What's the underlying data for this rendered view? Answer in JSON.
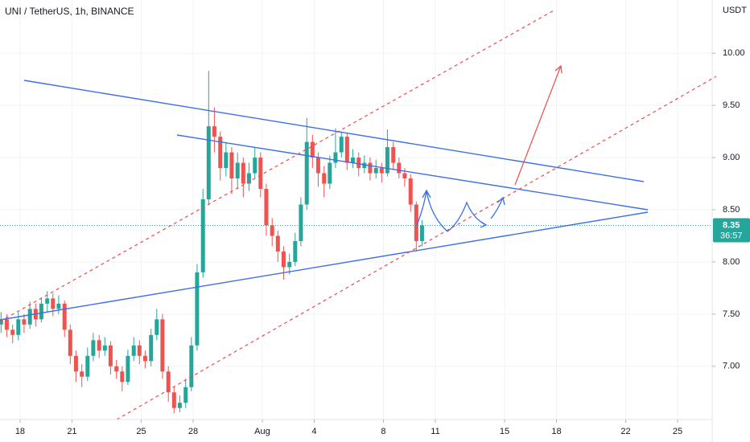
{
  "chart_data": {
    "type": "candlestick",
    "title": "UNI / TetherUS, 1h, BINANCE",
    "y_axis_label": "USDT",
    "current_price": 8.35,
    "current_price_label": "8.35",
    "countdown": "36:57",
    "up_color": "#26a69a",
    "down_color": "#ef5350",
    "grid": true,
    "xlim": [
      16.84,
      58.0
    ],
    "ylim": [
      6.49,
      10.51
    ],
    "xticks": [
      {
        "value": 18,
        "label": "18"
      },
      {
        "value": 21,
        "label": "21"
      },
      {
        "value": 25,
        "label": "25"
      },
      {
        "value": 28,
        "label": "28"
      },
      {
        "value": 32,
        "label": "Aug"
      },
      {
        "value": 35,
        "label": "4"
      },
      {
        "value": 39,
        "label": "8"
      },
      {
        "value": 42,
        "label": "11"
      },
      {
        "value": 46,
        "label": "15"
      },
      {
        "value": 49,
        "label": "18"
      },
      {
        "value": 53,
        "label": "22"
      },
      {
        "value": 56,
        "label": "25"
      }
    ],
    "yticks": [
      {
        "value": 7,
        "label": "7.00"
      },
      {
        "value": 7.5,
        "label": "7.50"
      },
      {
        "value": 8,
        "label": "8.00"
      },
      {
        "value": 8.5,
        "label": "8.50"
      },
      {
        "value": 9,
        "label": "9.00"
      },
      {
        "value": 9.5,
        "label": "9.50"
      },
      {
        "value": 10,
        "label": "10.00"
      }
    ],
    "x": [
      16.9,
      17.23,
      17.57,
      17.9,
      18.23,
      18.57,
      18.9,
      19.23,
      19.57,
      19.9,
      20.23,
      20.57,
      20.9,
      21.23,
      21.57,
      21.9,
      22.23,
      22.57,
      22.9,
      23.23,
      23.57,
      23.9,
      24.23,
      24.57,
      24.9,
      25.23,
      25.57,
      25.9,
      26.23,
      26.57,
      26.9,
      27.23,
      27.57,
      27.9,
      28.23,
      28.57,
      28.9,
      29.23,
      29.57,
      29.9,
      30.23,
      30.57,
      30.9,
      31.23,
      31.57,
      31.9,
      32.23,
      32.57,
      32.9,
      33.23,
      33.57,
      33.9,
      34.23,
      34.57,
      34.9,
      35.23,
      35.57,
      35.9,
      36.23,
      36.57,
      36.9,
      37.23,
      37.57,
      37.9,
      38.23,
      38.57,
      38.9,
      39.23,
      39.57,
      39.9,
      40.23,
      40.57,
      40.9,
      41.23
    ],
    "open": [
      7.4,
      7.45,
      7.35,
      7.3,
      7.45,
      7.4,
      7.55,
      7.45,
      7.6,
      7.65,
      7.55,
      7.6,
      7.35,
      7.1,
      6.95,
      6.9,
      7.1,
      7.25,
      7.15,
      7.2,
      7.0,
      6.95,
      6.85,
      7.1,
      7.2,
      7.1,
      7.05,
      7.3,
      7.45,
      6.95,
      6.75,
      6.6,
      6.65,
      6.8,
      7.2,
      7.9,
      8.6,
      9.3,
      9.2,
      8.9,
      9.05,
      8.8,
      8.95,
      8.75,
      8.85,
      9.0,
      8.7,
      8.35,
      8.25,
      8.1,
      7.95,
      8.0,
      8.2,
      8.55,
      9.15,
      9.0,
      8.85,
      8.75,
      8.95,
      9.05,
      9.2,
      8.95,
      9.0,
      8.9,
      8.95,
      8.85,
      8.9,
      8.85,
      9.1,
      8.95,
      8.85,
      8.8,
      8.55,
      8.2
    ],
    "high": [
      7.52,
      7.5,
      7.4,
      7.52,
      7.5,
      7.62,
      7.6,
      7.66,
      7.72,
      7.7,
      7.68,
      7.63,
      7.4,
      7.15,
      7.02,
      7.18,
      7.32,
      7.3,
      7.28,
      7.24,
      7.06,
      7.0,
      7.16,
      7.28,
      7.25,
      7.15,
      7.36,
      7.55,
      7.5,
      7.0,
      6.8,
      6.72,
      6.88,
      7.28,
      7.98,
      8.7,
      9.83,
      9.48,
      9.25,
      9.15,
      9.1,
      9.05,
      9.0,
      8.95,
      9.1,
      9.05,
      8.75,
      8.42,
      8.3,
      8.15,
      8.08,
      8.28,
      8.62,
      9.38,
      9.22,
      9.05,
      8.92,
      9.02,
      9.28,
      9.25,
      9.24,
      9.08,
      9.05,
      9.02,
      9.0,
      8.98,
      8.95,
      9.27,
      9.15,
      9.0,
      8.9,
      8.84,
      8.58,
      8.4
    ],
    "low": [
      7.32,
      7.28,
      7.22,
      7.25,
      7.32,
      7.36,
      7.38,
      7.42,
      7.52,
      7.48,
      7.5,
      7.28,
      7.02,
      6.85,
      6.8,
      6.86,
      7.05,
      7.08,
      7.1,
      6.92,
      6.88,
      6.76,
      6.82,
      7.05,
      7.02,
      6.98,
      7.0,
      7.25,
      6.88,
      6.66,
      6.55,
      6.56,
      6.6,
      6.76,
      7.15,
      7.85,
      8.55,
      9.05,
      8.78,
      8.82,
      8.65,
      8.7,
      8.62,
      8.68,
      8.8,
      8.62,
      8.25,
      8.15,
      8.0,
      7.83,
      7.88,
      7.96,
      8.15,
      8.5,
      8.9,
      8.72,
      8.62,
      8.7,
      8.9,
      9.0,
      8.88,
      8.9,
      8.82,
      8.85,
      8.78,
      8.8,
      8.76,
      8.82,
      8.88,
      8.8,
      8.72,
      8.48,
      8.1,
      8.15
    ],
    "close": [
      7.45,
      7.35,
      7.3,
      7.45,
      7.4,
      7.55,
      7.45,
      7.6,
      7.65,
      7.55,
      7.6,
      7.35,
      7.1,
      6.95,
      6.9,
      7.1,
      7.25,
      7.15,
      7.2,
      7.0,
      6.95,
      6.85,
      7.1,
      7.2,
      7.1,
      7.05,
      7.3,
      7.45,
      6.95,
      6.75,
      6.6,
      6.65,
      6.8,
      7.2,
      7.9,
      8.6,
      9.3,
      9.2,
      8.9,
      9.05,
      8.8,
      8.95,
      8.75,
      8.85,
      9.0,
      8.7,
      8.35,
      8.25,
      8.1,
      7.95,
      8.0,
      8.2,
      8.55,
      9.15,
      9.0,
      8.85,
      8.75,
      8.95,
      9.05,
      9.2,
      8.95,
      9.0,
      8.9,
      8.95,
      8.85,
      8.9,
      8.85,
      9.1,
      8.95,
      8.85,
      8.8,
      8.55,
      8.2,
      8.35
    ]
  }
}
